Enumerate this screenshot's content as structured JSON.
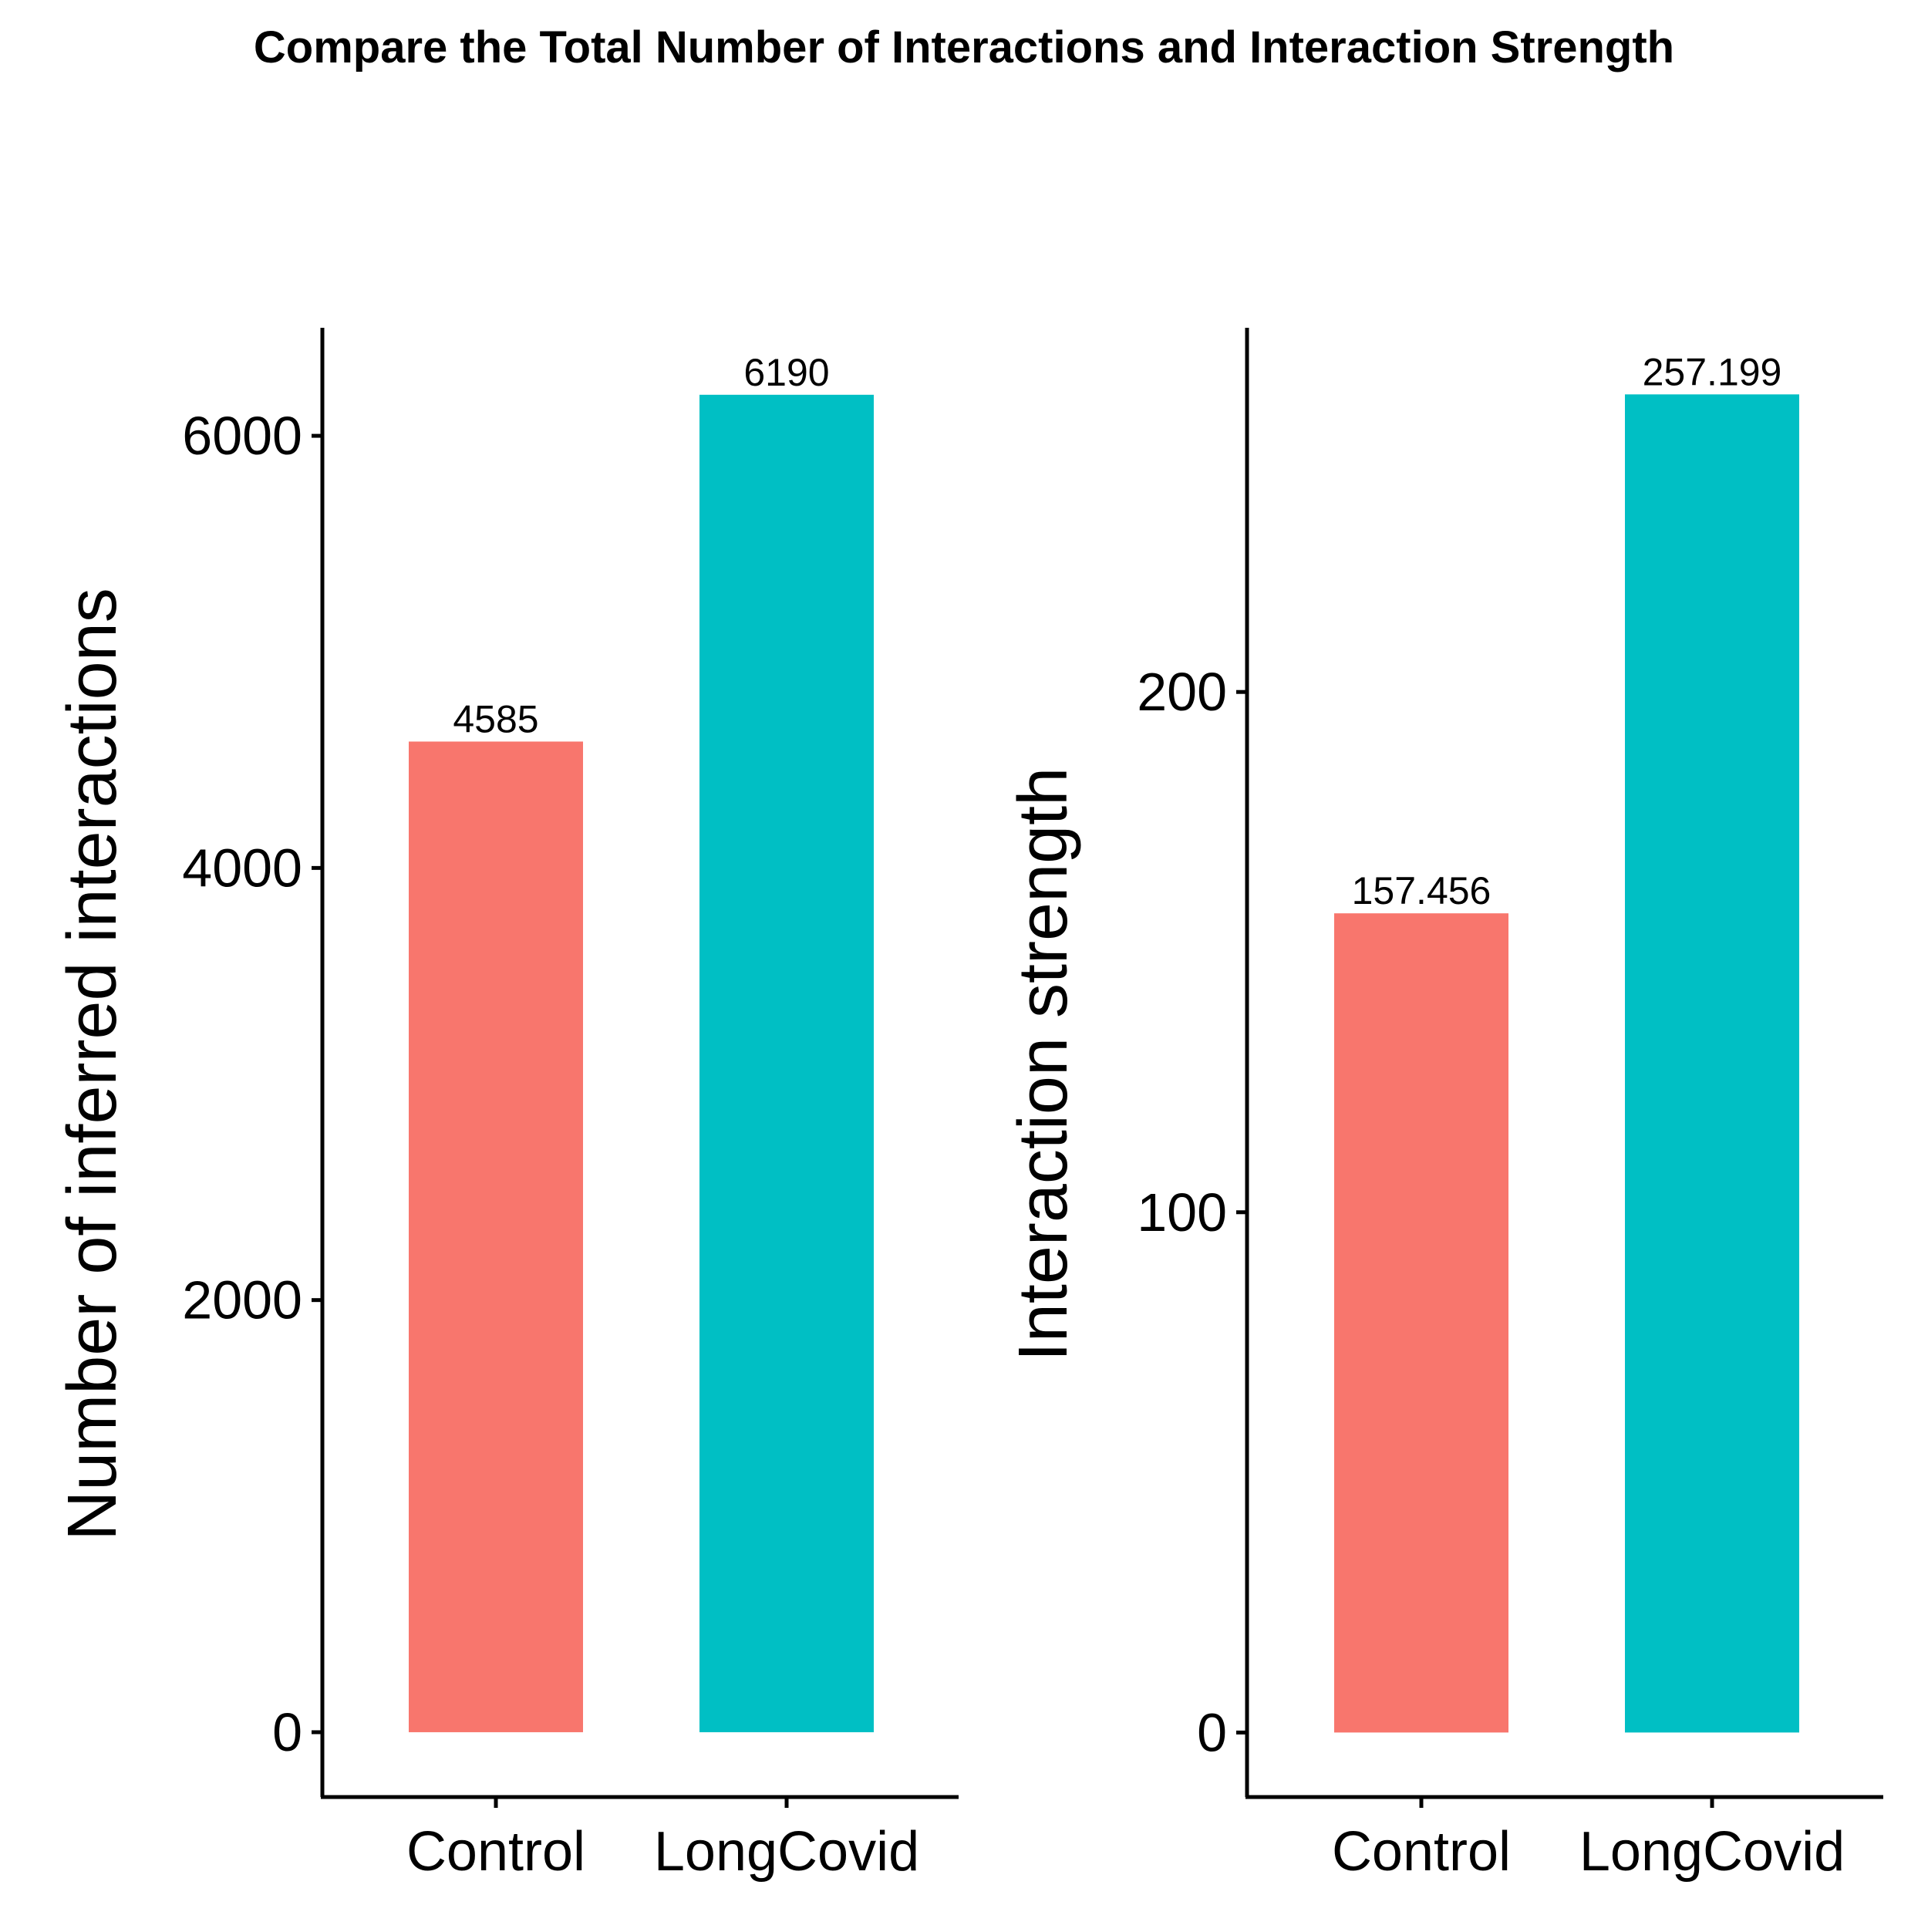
{
  "title": "Compare the Total Number of Interactions and Interaction Strength",
  "chart_data": [
    {
      "type": "bar",
      "categories": [
        "Control",
        "LongCovid"
      ],
      "values": [
        4585,
        6190
      ],
      "data_labels": [
        "4585",
        "6190"
      ],
      "ylabel": "Number of inferred interactions",
      "xlabel": "",
      "yticks": [
        0,
        2000,
        4000,
        6000
      ],
      "ylim": [
        -300,
        6500
      ],
      "colors": [
        "#F8766D",
        "#00BFC4"
      ],
      "grid": false,
      "legend": "none"
    },
    {
      "type": "bar",
      "categories": [
        "Control",
        "LongCovid"
      ],
      "values": [
        157.456,
        257.199
      ],
      "data_labels": [
        "157.456",
        "257.199"
      ],
      "ylabel": "Interaction strength",
      "xlabel": "",
      "yticks": [
        0,
        100,
        200
      ],
      "ylim": [
        -12.4,
        270
      ],
      "colors": [
        "#F8766D",
        "#00BFC4"
      ],
      "grid": false,
      "legend": "none"
    }
  ]
}
